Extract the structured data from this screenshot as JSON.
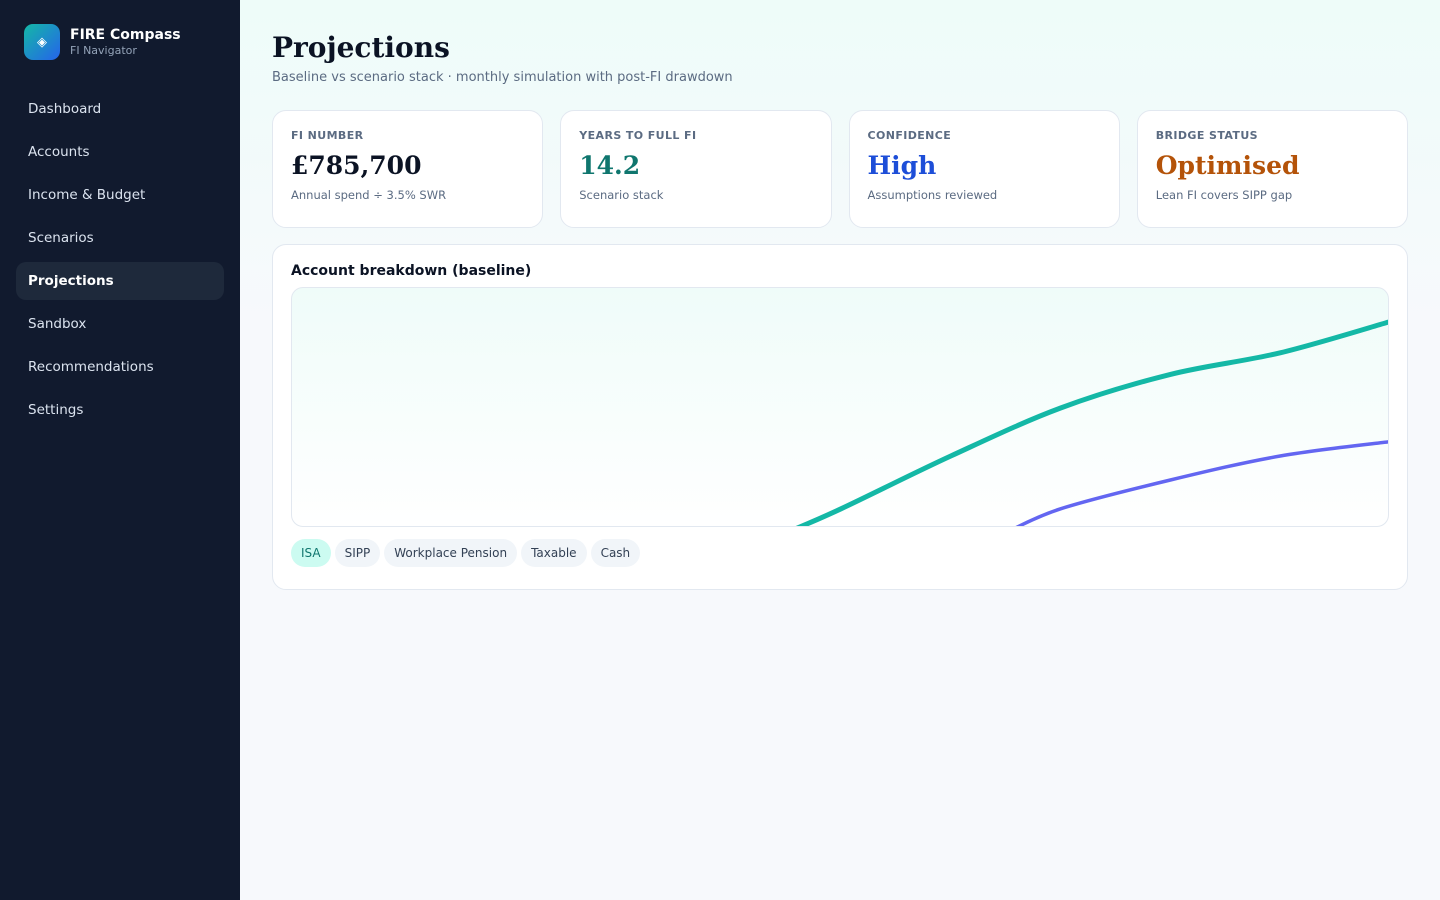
{
  "brand": {
    "title": "FIRE Compass",
    "subtitle": "FI Navigator",
    "logo_icon": "compass-diamond-icon"
  },
  "sidebar": {
    "items": [
      {
        "label": "Dashboard",
        "active": false
      },
      {
        "label": "Accounts",
        "active": false
      },
      {
        "label": "Income & Budget",
        "active": false
      },
      {
        "label": "Scenarios",
        "active": false
      },
      {
        "label": "Projections",
        "active": true
      },
      {
        "label": "Sandbox",
        "active": false
      },
      {
        "label": "Recommendations",
        "active": false
      },
      {
        "label": "Settings",
        "active": false
      }
    ]
  },
  "header": {
    "title": "Projections",
    "subtitle": "Baseline vs scenario stack · monthly simulation with post-FI drawdown"
  },
  "kpis": [
    {
      "label": "FI NUMBER",
      "value": "£785,700",
      "note": "Annual spend ÷ 3.5% SWR",
      "color": "#0b1324"
    },
    {
      "label": "YEARS TO FULL FI",
      "value": "14.2",
      "note": "Scenario stack",
      "color": "#0f766e"
    },
    {
      "label": "CONFIDENCE",
      "value": "High",
      "note": "Assumptions reviewed",
      "color": "#1d4ed8"
    },
    {
      "label": "BRIDGE STATUS",
      "value": "Optimised",
      "note": "Lean FI covers SIPP gap",
      "color": "#b45309"
    }
  ],
  "chart_card": {
    "title": "Account breakdown (baseline)",
    "legend": [
      {
        "label": "ISA",
        "active": true
      },
      {
        "label": "SIPP",
        "active": false
      },
      {
        "label": "Workplace Pension",
        "active": false
      },
      {
        "label": "Taxable",
        "active": false
      },
      {
        "label": "Cash",
        "active": false
      }
    ]
  },
  "chart_data": {
    "type": "line",
    "title": "",
    "xlabel": "",
    "ylabel": "",
    "x": [
      0,
      10,
      20,
      30,
      40,
      50,
      60,
      70,
      80,
      90,
      100
    ],
    "xlim": [
      0,
      100
    ],
    "ylim": [
      0,
      100
    ],
    "grid": false,
    "series": [
      {
        "color": "#14b8a6",
        "values": [
          null,
          null,
          null,
          null,
          null,
          8,
          30,
          50,
          64,
          73,
          86
        ]
      },
      {
        "color": "#6366f1",
        "values": [
          null,
          null,
          null,
          null,
          null,
          null,
          null,
          8,
          20,
          30,
          36
        ]
      }
    ]
  }
}
